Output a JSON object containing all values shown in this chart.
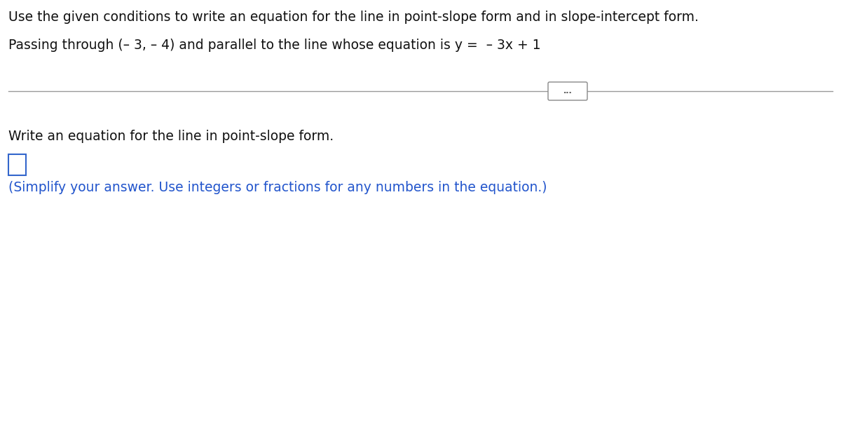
{
  "line1": "Use the given conditions to write an equation for the line in point-slope form and in slope-intercept form.",
  "line2": "Passing through (– 3, – 4) and parallel to the line whose equation is y =  – 3x + 1",
  "dots_text": "...",
  "section_label": "Write an equation for the line in point-slope form.",
  "blue_text": "(Simplify your answer. Use integers or fractions for any numbers in the equation.)",
  "blue_color": "#2255cc",
  "text_color": "#111111",
  "bg_color": "#ffffff",
  "divider_color": "#999999",
  "box_edge_color": "#3366cc",
  "font_size_main": 13.5,
  "font_size_section": 13.5,
  "font_size_blue": 13.5
}
